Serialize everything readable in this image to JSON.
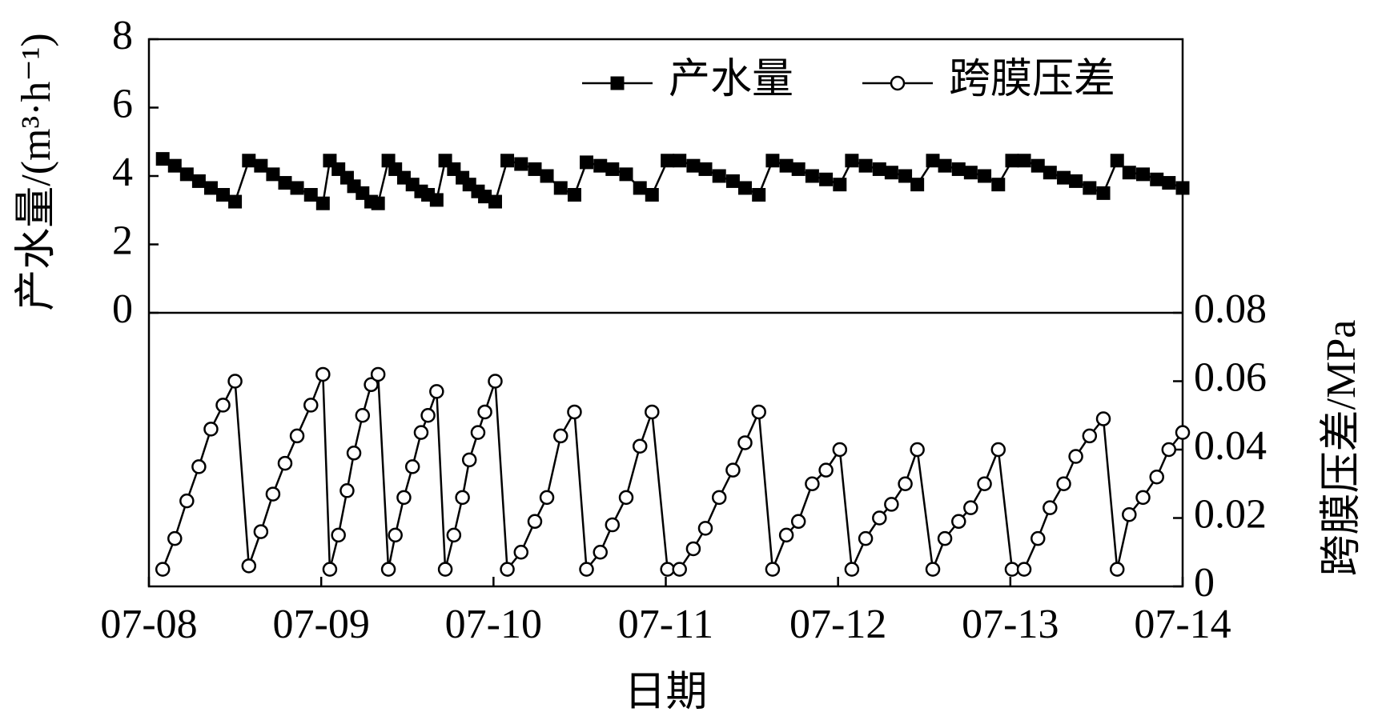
{
  "chart_data": {
    "type": "line",
    "xlabel": "日期",
    "ylabel": "产水量/(m³·h⁻¹)",
    "y2label": "跨膜压差/MPa",
    "xlim": [
      0,
      6
    ],
    "xticks": [
      {
        "value": 0,
        "label": "07-08"
      },
      {
        "value": 1,
        "label": "07-09"
      },
      {
        "value": 2,
        "label": "07-10"
      },
      {
        "value": 3,
        "label": "07-11"
      },
      {
        "value": 4,
        "label": "07-12"
      },
      {
        "value": 5,
        "label": "07-13"
      },
      {
        "value": 6,
        "label": "07-14"
      }
    ],
    "ylim": [
      -8,
      8
    ],
    "yticks": [
      0,
      2,
      4,
      6,
      8
    ],
    "y2lim": [
      0,
      0.16
    ],
    "y2ticks": [
      0,
      0.02,
      0.04,
      0.06,
      0.08
    ],
    "legend": "upper right",
    "x": [
      0.08,
      0.15,
      0.22,
      0.29,
      0.36,
      0.43,
      0.5,
      0.58,
      0.65,
      0.72,
      0.79,
      0.86,
      0.94,
      1.01,
      1.05,
      1.1,
      1.15,
      1.19,
      1.24,
      1.29,
      1.33,
      1.39,
      1.43,
      1.48,
      1.53,
      1.58,
      1.62,
      1.67,
      1.72,
      1.77,
      1.82,
      1.86,
      1.91,
      1.95,
      2.01,
      2.08,
      2.16,
      2.24,
      2.31,
      2.39,
      2.47,
      2.54,
      2.62,
      2.69,
      2.77,
      2.85,
      2.92,
      3.01,
      3.08,
      3.16,
      3.23,
      3.31,
      3.39,
      3.46,
      3.54,
      3.62,
      3.7,
      3.77,
      3.85,
      3.93,
      4.01,
      4.08,
      4.16,
      4.24,
      4.31,
      4.39,
      4.46,
      4.55,
      4.62,
      4.7,
      4.77,
      4.85,
      4.93,
      5.01,
      5.08,
      5.16,
      5.23,
      5.31,
      5.38,
      5.46,
      5.54,
      5.62,
      5.69,
      5.77,
      5.85,
      5.92,
      6.0
    ],
    "series": [
      {
        "name": "产水量",
        "color": "#000000",
        "marker": "square",
        "values": [
          4.5,
          4.3,
          4.05,
          3.85,
          3.65,
          3.45,
          3.25,
          4.45,
          4.3,
          4.05,
          3.8,
          3.65,
          3.45,
          3.2,
          4.45,
          4.2,
          3.95,
          3.7,
          3.5,
          3.25,
          3.2,
          4.45,
          4.2,
          3.95,
          3.75,
          3.55,
          3.45,
          3.3,
          4.45,
          4.2,
          3.95,
          3.75,
          3.55,
          3.4,
          3.25,
          4.45,
          4.35,
          4.2,
          4.0,
          3.65,
          3.45,
          4.4,
          4.3,
          4.2,
          4.05,
          3.65,
          3.45,
          4.45,
          4.45,
          4.3,
          4.2,
          4.0,
          3.85,
          3.65,
          3.45,
          4.45,
          4.3,
          4.2,
          4.0,
          3.9,
          3.75,
          4.45,
          4.3,
          4.2,
          4.1,
          4.0,
          3.75,
          4.45,
          4.3,
          4.2,
          4.1,
          4.0,
          3.75,
          4.45,
          4.45,
          4.3,
          4.1,
          3.95,
          3.85,
          3.65,
          3.5,
          4.45,
          4.1,
          4.05,
          3.9,
          3.8,
          3.65
        ]
      },
      {
        "name": "跨膜压差",
        "color": "#000000",
        "marker": "circle",
        "axis": "y2",
        "values": [
          0.005,
          0.014,
          0.025,
          0.035,
          0.046,
          0.053,
          0.06,
          0.006,
          0.016,
          0.027,
          0.036,
          0.044,
          0.053,
          0.062,
          0.005,
          0.015,
          0.028,
          0.039,
          0.05,
          0.059,
          0.062,
          0.005,
          0.015,
          0.026,
          0.035,
          0.045,
          0.05,
          0.057,
          0.005,
          0.015,
          0.026,
          0.037,
          0.045,
          0.051,
          0.06,
          0.005,
          0.01,
          0.019,
          0.026,
          0.044,
          0.051,
          0.005,
          0.01,
          0.018,
          0.026,
          0.041,
          0.051,
          0.005,
          0.005,
          0.011,
          0.017,
          0.026,
          0.034,
          0.042,
          0.051,
          0.005,
          0.015,
          0.019,
          0.03,
          0.034,
          0.04,
          0.005,
          0.014,
          0.02,
          0.024,
          0.03,
          0.04,
          0.005,
          0.014,
          0.019,
          0.023,
          0.03,
          0.04,
          0.005,
          0.005,
          0.014,
          0.023,
          0.03,
          0.038,
          0.044,
          0.049,
          0.005,
          0.021,
          0.026,
          0.032,
          0.04,
          0.045
        ]
      }
    ]
  }
}
